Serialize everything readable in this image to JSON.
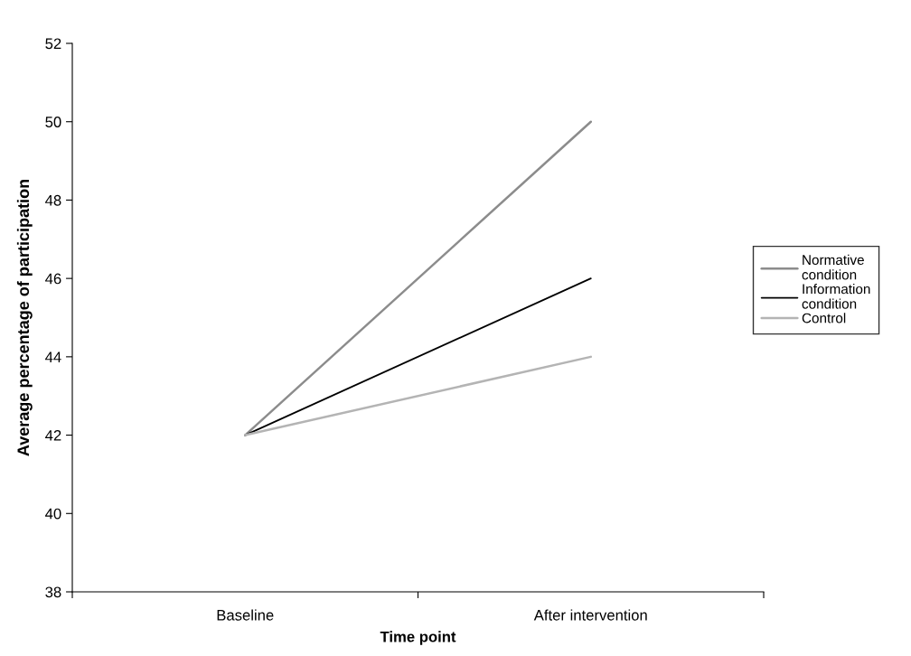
{
  "chart_data": {
    "type": "line",
    "xlabel": "Time point",
    "ylabel": "Average percentage of participation",
    "categories": [
      "Baseline",
      "After intervention"
    ],
    "series": [
      {
        "name": "Normative\ncondition",
        "color": "#8c8c8c",
        "values": [
          42,
          50
        ]
      },
      {
        "name": "Information\ncondition",
        "color": "#000000",
        "values": [
          42,
          46
        ]
      },
      {
        "name": "Control",
        "color": "#b4b4b4",
        "values": [
          42,
          44
        ]
      }
    ],
    "ylim": [
      38,
      52
    ],
    "yticks": [
      38,
      40,
      42,
      44,
      46,
      48,
      50,
      52
    ],
    "grid": false,
    "legend": "right",
    "marker": "none",
    "line_style": "solid"
  }
}
